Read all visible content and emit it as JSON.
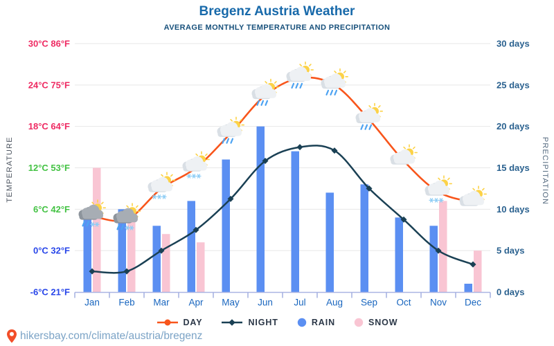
{
  "header": {
    "title": "Bregenz Austria Weather",
    "subtitle": "AVERAGE MONTHLY TEMPERATURE AND PRECIPITATION"
  },
  "axes": {
    "left_title": "TEMPERATURE",
    "right_title": "PRECIPITATION",
    "temp_ticks": [
      {
        "label": "30°C 86°F",
        "c": 30,
        "color": "#ee2a62"
      },
      {
        "label": "24°C 75°F",
        "c": 24,
        "color": "#ee2a62"
      },
      {
        "label": "18°C 64°F",
        "c": 18,
        "color": "#ee2a62"
      },
      {
        "label": "12°C 53°F",
        "c": 12,
        "color": "#43c243"
      },
      {
        "label": "6°C 42°F",
        "c": 6,
        "color": "#43c243"
      },
      {
        "label": "0°C 32°F",
        "c": 0,
        "color": "#2745e9"
      },
      {
        "label": "-6°C 21°F",
        "c": -6,
        "color": "#2745e9"
      }
    ],
    "precip_ticks": [
      {
        "label": "30 days",
        "d": 30
      },
      {
        "label": "25 days",
        "d": 25
      },
      {
        "label": "20 days",
        "d": 20
      },
      {
        "label": "15 days",
        "d": 15
      },
      {
        "label": "10 days",
        "d": 10
      },
      {
        "label": "5 days",
        "d": 5
      },
      {
        "label": "0 days",
        "d": 0
      }
    ],
    "month_label_color": "#1966bf",
    "precip_label_color": "#2a618f",
    "axis_line_color": "#a9b4e2",
    "grid_color": "#e7e7e7"
  },
  "chart_data": {
    "type": "mixed line+bar climate chart",
    "categories": [
      "Jan",
      "Feb",
      "Mar",
      "Apr",
      "May",
      "Jun",
      "Jul",
      "Aug",
      "Sep",
      "Oct",
      "Nov",
      "Dec"
    ],
    "temp_axis_range_c": [
      -6,
      30
    ],
    "precip_axis_range_days": [
      0,
      30
    ],
    "grid": true,
    "legend_position": "bottom",
    "series": [
      {
        "name": "DAY",
        "type": "line",
        "unit": "°C",
        "marker": "circle",
        "color": "#f8551b",
        "values": [
          5,
          4.5,
          9,
          12,
          17,
          22.5,
          25,
          24,
          19,
          13,
          8.5,
          7
        ]
      },
      {
        "name": "NIGHT",
        "type": "line",
        "unit": "°C",
        "marker": "diamond",
        "color": "#1a4054",
        "values": [
          -3,
          -3,
          0,
          3,
          7.5,
          13,
          15,
          14.5,
          9,
          4.5,
          0,
          -2
        ]
      },
      {
        "name": "RAIN",
        "type": "bar",
        "unit": "days",
        "marker": "circle",
        "color": "#5b8ff2",
        "values": [
          9,
          10,
          8,
          11,
          16,
          20,
          17,
          12,
          13,
          9,
          8,
          1
        ]
      },
      {
        "name": "SNOW",
        "type": "bar",
        "unit": "days",
        "marker": "circle",
        "color": "#f9c5d3",
        "values": [
          15,
          9,
          7,
          6,
          0,
          0,
          0,
          0,
          0,
          0,
          11,
          5
        ]
      }
    ],
    "month_icons": [
      "snow-rain-sun",
      "snow-rain-sun",
      "snow-sun",
      "snow-sun",
      "rain-sun",
      "rain-sun",
      "rain-sun",
      "rain-sun",
      "rain-sun",
      "cloud-sun",
      "snow-sun",
      "cloud-sun"
    ],
    "icon_colors": {
      "sun": "#fcd247",
      "cloud_light": "#eef1f4",
      "cloud_shadow": "#d9dfe5",
      "cloud_dark": "#a7adb4",
      "cloud_dark_back": "#8d949c",
      "rain_drop": "#4da3f2",
      "snow_flake": "#8ecdf5"
    }
  },
  "footer": {
    "url": "hikersbay.com/climate/austria/bregenz",
    "pin_color": "#f24e29"
  }
}
